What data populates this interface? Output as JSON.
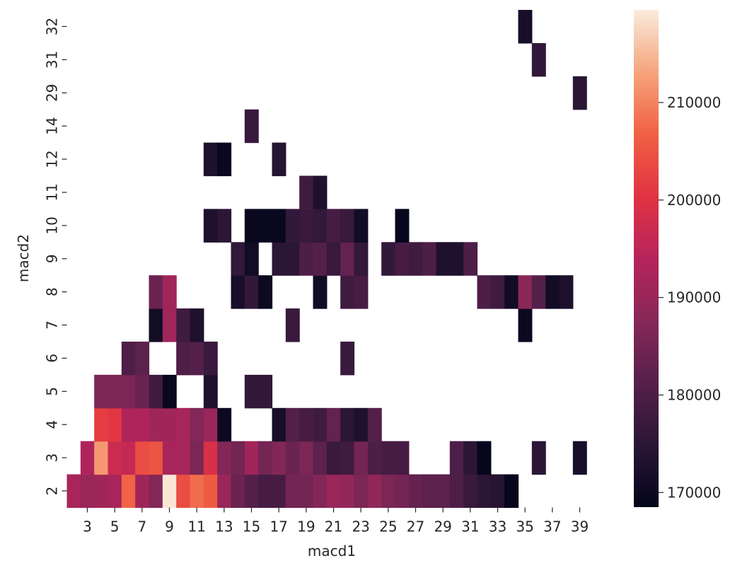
{
  "chart_data": {
    "type": "heatmap",
    "title": "",
    "xlabel": "macd1",
    "ylabel": "macd2",
    "x_categories": [
      "2",
      "3",
      "4",
      "5",
      "6",
      "7",
      "8",
      "9",
      "10",
      "11",
      "12",
      "13",
      "14",
      "15",
      "16",
      "17",
      "18",
      "19",
      "20",
      "21",
      "22",
      "23",
      "24",
      "25",
      "26",
      "27",
      "28",
      "29",
      "30",
      "31",
      "32",
      "33",
      "34",
      "35",
      "36",
      "37",
      "38",
      "39",
      "40"
    ],
    "x_tick_labels": [
      "3",
      "5",
      "7",
      "9",
      "11",
      "13",
      "15",
      "17",
      "19",
      "21",
      "23",
      "25",
      "27",
      "29",
      "31",
      "33",
      "35",
      "37",
      "39"
    ],
    "y_categories": [
      "2",
      "3",
      "4",
      "5",
      "6",
      "7",
      "8",
      "9",
      "10",
      "11",
      "12",
      "14",
      "29",
      "31",
      "32"
    ],
    "color_range": [
      168500,
      219500
    ],
    "colorbar_ticks": [
      170000,
      180000,
      190000,
      200000,
      210000
    ],
    "colorbar_tick_labels": [
      "170000",
      "180000",
      "190000",
      "200000",
      "210000"
    ],
    "colormap": "rocket",
    "cells": [
      [
        "2",
        "2",
        192000
      ],
      [
        "2",
        "3",
        190000
      ],
      [
        "2",
        "4",
        191000
      ],
      [
        "2",
        "5",
        192000
      ],
      [
        "2",
        "6",
        207000
      ],
      [
        "2",
        "7",
        191000
      ],
      [
        "2",
        "8",
        187000
      ],
      [
        "2",
        "9",
        219000
      ],
      [
        "2",
        "10",
        204000
      ],
      [
        "2",
        "11",
        208000
      ],
      [
        "2",
        "12",
        206000
      ],
      [
        "2",
        "13",
        190000
      ],
      [
        "2",
        "14",
        184000
      ],
      [
        "2",
        "15",
        181000
      ],
      [
        "2",
        "16",
        179000
      ],
      [
        "2",
        "17",
        179000
      ],
      [
        "2",
        "18",
        185000
      ],
      [
        "2",
        "19",
        185000
      ],
      [
        "2",
        "20",
        187000
      ],
      [
        "2",
        "21",
        190000
      ],
      [
        "2",
        "22",
        189000
      ],
      [
        "2",
        "23",
        186000
      ],
      [
        "2",
        "24",
        189000
      ],
      [
        "2",
        "25",
        186000
      ],
      [
        "2",
        "26",
        185000
      ],
      [
        "2",
        "27",
        183000
      ],
      [
        "2",
        "28",
        182000
      ],
      [
        "2",
        "29",
        182000
      ],
      [
        "2",
        "30",
        180000
      ],
      [
        "2",
        "31",
        177000
      ],
      [
        "2",
        "32",
        175000
      ],
      [
        "2",
        "33",
        174000
      ],
      [
        "2",
        "34",
        169000
      ],
      [
        "3",
        "3",
        193000
      ],
      [
        "3",
        "4",
        212000
      ],
      [
        "3",
        "5",
        197000
      ],
      [
        "3",
        "6",
        196000
      ],
      [
        "3",
        "7",
        204000
      ],
      [
        "3",
        "8",
        205000
      ],
      [
        "3",
        "9",
        192000
      ],
      [
        "3",
        "10",
        192000
      ],
      [
        "3",
        "11",
        186000
      ],
      [
        "3",
        "12",
        199000
      ],
      [
        "3",
        "13",
        187000
      ],
      [
        "3",
        "14",
        185000
      ],
      [
        "3",
        "15",
        191000
      ],
      [
        "3",
        "16",
        185000
      ],
      [
        "3",
        "17",
        187000
      ],
      [
        "3",
        "18",
        184000
      ],
      [
        "3",
        "19",
        186000
      ],
      [
        "3",
        "20",
        182000
      ],
      [
        "3",
        "21",
        177000
      ],
      [
        "3",
        "22",
        178000
      ],
      [
        "3",
        "23",
        185000
      ],
      [
        "3",
        "24",
        180000
      ],
      [
        "3",
        "25",
        179000
      ],
      [
        "3",
        "26",
        179000
      ],
      [
        "3",
        "30",
        180000
      ],
      [
        "3",
        "31",
        175000
      ],
      [
        "3",
        "32",
        169000
      ],
      [
        "3",
        "36",
        175000
      ],
      [
        "3",
        "39",
        172000
      ],
      [
        "4",
        "4",
        202000
      ],
      [
        "4",
        "5",
        201000
      ],
      [
        "4",
        "6",
        193000
      ],
      [
        "4",
        "7",
        193000
      ],
      [
        "4",
        "8",
        191000
      ],
      [
        "4",
        "9",
        191000
      ],
      [
        "4",
        "10",
        192000
      ],
      [
        "4",
        "11",
        187000
      ],
      [
        "4",
        "12",
        190000
      ],
      [
        "4",
        "13",
        170000
      ],
      [
        "4",
        "17",
        172000
      ],
      [
        "4",
        "18",
        181000
      ],
      [
        "4",
        "19",
        179000
      ],
      [
        "4",
        "20",
        178000
      ],
      [
        "4",
        "21",
        183000
      ],
      [
        "4",
        "22",
        175000
      ],
      [
        "4",
        "23",
        173000
      ],
      [
        "4",
        "24",
        181000
      ],
      [
        "5",
        "4",
        186000
      ],
      [
        "5",
        "5",
        186000
      ],
      [
        "5",
        "6",
        186000
      ],
      [
        "5",
        "7",
        184000
      ],
      [
        "5",
        "8",
        178000
      ],
      [
        "5",
        "9",
        169500
      ],
      [
        "5",
        "12",
        173000
      ],
      [
        "5",
        "15",
        176000
      ],
      [
        "5",
        "16",
        176000
      ],
      [
        "6",
        "6",
        180000
      ],
      [
        "6",
        "7",
        182000
      ],
      [
        "6",
        "10",
        180000
      ],
      [
        "6",
        "11",
        181000
      ],
      [
        "6",
        "12",
        177000
      ],
      [
        "6",
        "22",
        177000
      ],
      [
        "7",
        "8",
        171000
      ],
      [
        "7",
        "9",
        191000
      ],
      [
        "7",
        "10",
        178000
      ],
      [
        "7",
        "11",
        173000
      ],
      [
        "7",
        "18",
        177000
      ],
      [
        "7",
        "35",
        170000
      ],
      [
        "8",
        "8",
        184000
      ],
      [
        "8",
        "9",
        191000
      ],
      [
        "8",
        "14",
        172000
      ],
      [
        "8",
        "15",
        176000
      ],
      [
        "8",
        "16",
        170000
      ],
      [
        "8",
        "20",
        171000
      ],
      [
        "8",
        "22",
        178000
      ],
      [
        "8",
        "23",
        179000
      ],
      [
        "8",
        "32",
        180000
      ],
      [
        "8",
        "33",
        178000
      ],
      [
        "8",
        "34",
        171000
      ],
      [
        "8",
        "35",
        188000
      ],
      [
        "8",
        "36",
        181000
      ],
      [
        "8",
        "37",
        171000
      ],
      [
        "8",
        "38",
        173000
      ],
      [
        "9",
        "14",
        176000
      ],
      [
        "9",
        "15",
        171000
      ],
      [
        "9",
        "17",
        175000
      ],
      [
        "9",
        "18",
        175000
      ],
      [
        "9",
        "19",
        180000
      ],
      [
        "9",
        "20",
        181000
      ],
      [
        "9",
        "21",
        177000
      ],
      [
        "9",
        "22",
        183000
      ],
      [
        "9",
        "23",
        176000
      ],
      [
        "9",
        "25",
        176000
      ],
      [
        "9",
        "26",
        179000
      ],
      [
        "9",
        "27",
        178000
      ],
      [
        "9",
        "28",
        180000
      ],
      [
        "9",
        "29",
        173000
      ],
      [
        "9",
        "30",
        173000
      ],
      [
        "9",
        "31",
        180000
      ],
      [
        "10",
        "12",
        173000
      ],
      [
        "10",
        "13",
        175000
      ],
      [
        "10",
        "15",
        169500
      ],
      [
        "10",
        "16",
        169500
      ],
      [
        "10",
        "17",
        169500
      ],
      [
        "10",
        "18",
        176000
      ],
      [
        "10",
        "19",
        177000
      ],
      [
        "10",
        "20",
        176000
      ],
      [
        "10",
        "21",
        179000
      ],
      [
        "10",
        "22",
        177000
      ],
      [
        "10",
        "23",
        171000
      ],
      [
        "10",
        "26",
        169000
      ],
      [
        "11",
        "19",
        178000
      ],
      [
        "11",
        "20",
        173000
      ],
      [
        "12",
        "12",
        173000
      ],
      [
        "12",
        "13",
        169500
      ],
      [
        "12",
        "17",
        174000
      ],
      [
        "14",
        "15",
        177000
      ],
      [
        "29",
        "39",
        175000
      ],
      [
        "31",
        "36",
        176000
      ],
      [
        "32",
        "35",
        172000
      ]
    ]
  }
}
